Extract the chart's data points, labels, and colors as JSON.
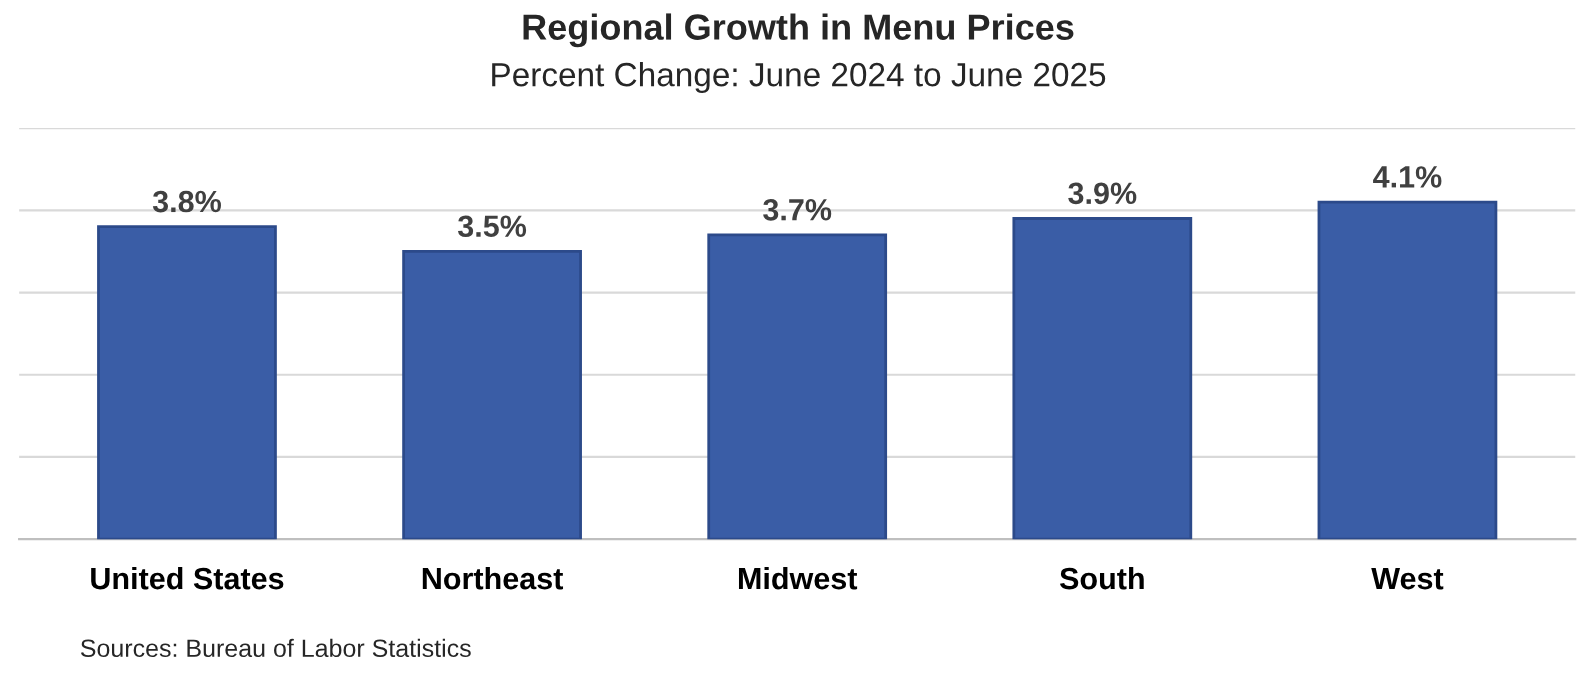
{
  "chart_data": {
    "type": "bar",
    "title": "Regional Growth in Menu Prices",
    "subtitle": "Percent Change: June 2024 to June 2025",
    "categories": [
      "United States",
      "Northeast",
      "Midwest",
      "South",
      "West"
    ],
    "values": [
      3.8,
      3.5,
      3.7,
      3.9,
      4.1
    ],
    "value_labels": [
      "3.8%",
      "3.5%",
      "3.7%",
      "3.9%",
      "4.1%"
    ],
    "color": "#3a5da6",
    "ylim": [
      0,
      5
    ],
    "yticks": [
      {
        "value": 0,
        "label": null
      },
      {
        "value": 1,
        "label": null
      },
      {
        "value": 2,
        "label": null
      },
      {
        "value": 3,
        "label": null
      },
      {
        "value": 4,
        "label": null
      },
      {
        "value": 5,
        "label": null
      }
    ],
    "grid": "y",
    "tick_labels": "x",
    "annotations": [
      "Sources: Bureau of Labor Statistics"
    ]
  }
}
